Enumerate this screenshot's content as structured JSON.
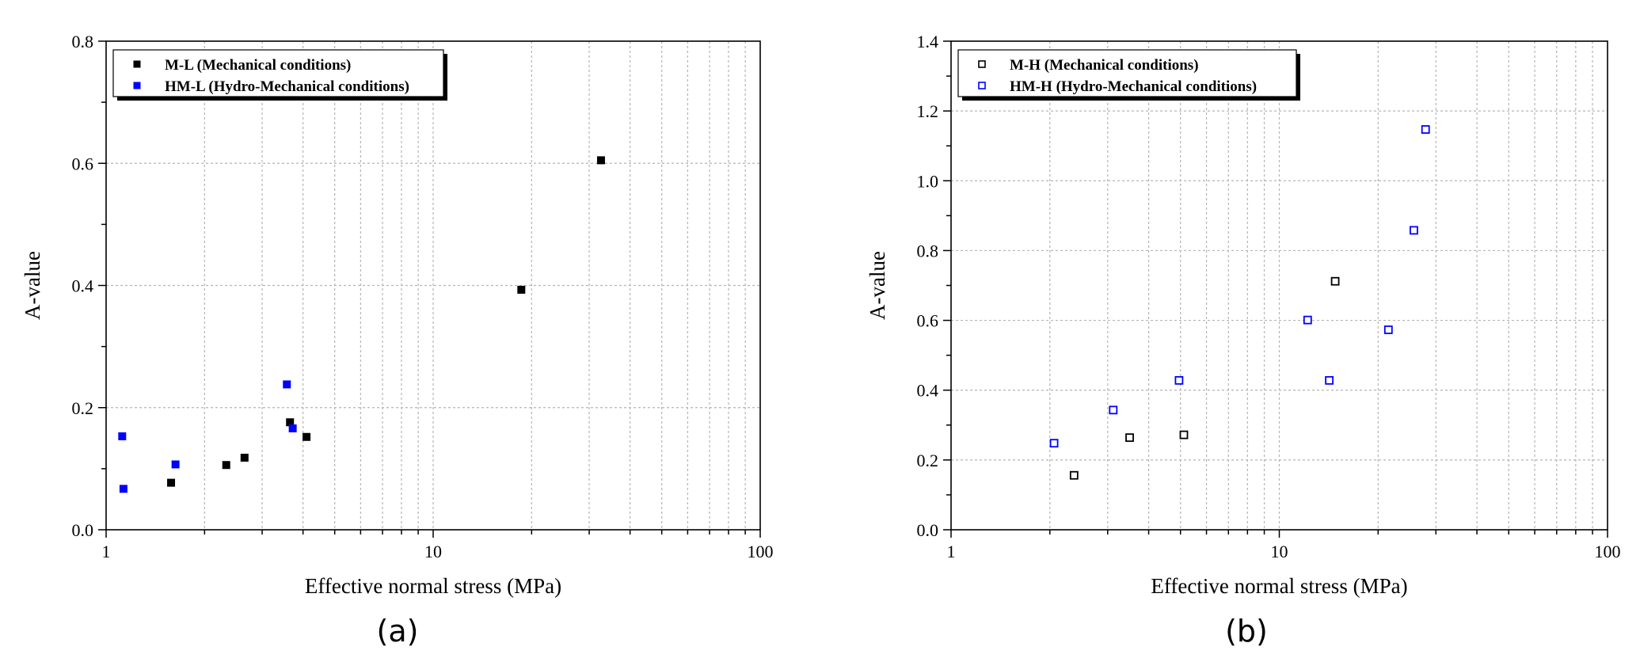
{
  "chart_data": [
    {
      "type": "scatter",
      "panel_label": "(a)",
      "xlabel": "Effective normal stress (MPa)",
      "ylabel": "A-value",
      "xscale": "log",
      "xlim": [
        1,
        100
      ],
      "ylim": [
        0,
        0.8
      ],
      "xticks": [
        "1",
        "10",
        "100"
      ],
      "yticks": [
        "0.0",
        "0.2",
        "0.4",
        "0.6",
        "0.8"
      ],
      "grid": true,
      "legend_position": "top-left",
      "series": [
        {
          "name": "M-L (Mechanical conditions)",
          "color": "#000000",
          "marker": "filled-square",
          "points": [
            [
              1.58,
              0.077
            ],
            [
              2.33,
              0.106
            ],
            [
              2.65,
              0.118
            ],
            [
              3.65,
              0.176
            ],
            [
              4.1,
              0.152
            ],
            [
              18.6,
              0.393
            ],
            [
              32.6,
              0.605
            ]
          ]
        },
        {
          "name": "HM-L (Hydro-Mechanical conditions)",
          "color": "#0000ff",
          "marker": "filled-square",
          "points": [
            [
              1.12,
              0.153
            ],
            [
              1.13,
              0.067
            ],
            [
              1.63,
              0.107
            ],
            [
              3.57,
              0.238
            ],
            [
              3.72,
              0.166
            ]
          ]
        }
      ]
    },
    {
      "type": "scatter",
      "panel_label": "(b)",
      "xlabel": "Effective normal stress (MPa)",
      "ylabel": "A-value",
      "xscale": "log",
      "xlim": [
        1,
        100
      ],
      "ylim": [
        0,
        1.4
      ],
      "xticks": [
        "1",
        "10",
        "100"
      ],
      "yticks": [
        "0.0",
        "0.2",
        "0.4",
        "0.6",
        "0.8",
        "1.0",
        "1.2",
        "1.4"
      ],
      "grid": true,
      "legend_position": "top-left",
      "series": [
        {
          "name": "M-H (Mechanical conditions)",
          "color": "#000000",
          "marker": "open-square",
          "points": [
            [
              2.37,
              0.156
            ],
            [
              3.5,
              0.264
            ],
            [
              5.12,
              0.272
            ],
            [
              14.8,
              0.712
            ]
          ]
        },
        {
          "name": "HM-H (Hydro-Mechanical conditions)",
          "color": "#0000ff",
          "marker": "open-square",
          "points": [
            [
              2.06,
              0.248
            ],
            [
              3.12,
              0.343
            ],
            [
              4.95,
              0.428
            ],
            [
              12.2,
              0.601
            ],
            [
              14.2,
              0.428
            ],
            [
              21.5,
              0.573
            ],
            [
              25.7,
              0.858
            ],
            [
              27.9,
              1.147
            ]
          ]
        }
      ]
    }
  ]
}
